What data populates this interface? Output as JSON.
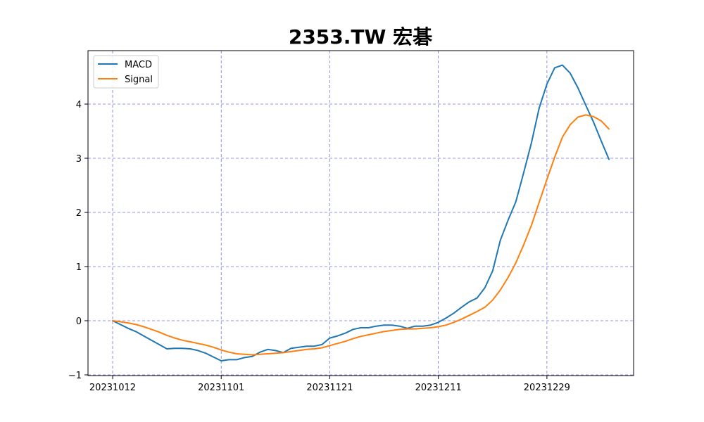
{
  "chart_data": {
    "type": "line",
    "title": "2353.TW 宏碁",
    "xlabel": "",
    "ylabel": "",
    "x_tick_labels": [
      "20231012",
      "20231101",
      "20231121",
      "20231211",
      "20231229"
    ],
    "y_tick_labels": [
      "−1",
      "0",
      "1",
      "2",
      "3",
      "4"
    ],
    "ylim": [
      -1,
      4.95
    ],
    "grid": true,
    "legend": "top-left",
    "series": [
      {
        "name": "MACD",
        "color": "#1f77b4",
        "values": [
          0,
          -0.07,
          -0.14,
          -0.2,
          -0.28,
          -0.36,
          -0.44,
          -0.52,
          -0.51,
          -0.51,
          -0.52,
          -0.55,
          -0.6,
          -0.67,
          -0.74,
          -0.72,
          -0.72,
          -0.68,
          -0.66,
          -0.58,
          -0.53,
          -0.55,
          -0.59,
          -0.51,
          -0.49,
          -0.47,
          -0.47,
          -0.44,
          -0.32,
          -0.28,
          -0.23,
          -0.16,
          -0.13,
          -0.13,
          -0.1,
          -0.08,
          -0.08,
          -0.1,
          -0.14,
          -0.1,
          -0.1,
          -0.08,
          -0.03,
          0.05,
          0.14,
          0.25,
          0.35,
          0.42,
          0.61,
          0.92,
          1.49,
          1.86,
          2.2,
          2.73,
          3.28,
          3.93,
          4.37,
          4.67,
          4.72,
          4.57,
          4.3,
          3.98,
          3.67,
          3.32,
          2.98
        ]
      },
      {
        "name": "Signal",
        "color": "#ff7f0e",
        "values": [
          0,
          -0.02,
          -0.04,
          -0.07,
          -0.11,
          -0.16,
          -0.21,
          -0.27,
          -0.32,
          -0.36,
          -0.39,
          -0.42,
          -0.45,
          -0.49,
          -0.54,
          -0.58,
          -0.61,
          -0.62,
          -0.63,
          -0.62,
          -0.61,
          -0.6,
          -0.59,
          -0.57,
          -0.55,
          -0.53,
          -0.52,
          -0.5,
          -0.46,
          -0.42,
          -0.38,
          -0.33,
          -0.29,
          -0.26,
          -0.23,
          -0.2,
          -0.18,
          -0.16,
          -0.15,
          -0.15,
          -0.14,
          -0.13,
          -0.11,
          -0.08,
          -0.03,
          0.03,
          0.1,
          0.17,
          0.25,
          0.38,
          0.57,
          0.8,
          1.07,
          1.4,
          1.76,
          2.19,
          2.61,
          3.02,
          3.39,
          3.62,
          3.76,
          3.8,
          3.77,
          3.69,
          3.54
        ]
      }
    ]
  }
}
